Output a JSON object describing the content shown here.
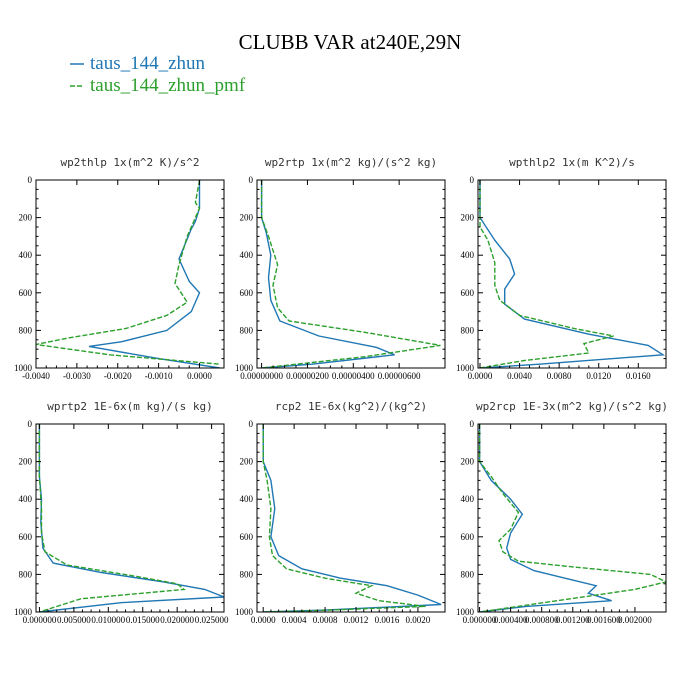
{
  "figure_title": "CLUBB VAR at240E,29N",
  "legend": [
    {
      "label": "taus_144_zhun",
      "color": "#1f77b4",
      "dash": "solid"
    },
    {
      "label": "taus_144_zhun_pmf",
      "color": "#2ca02c",
      "dash": "dashed"
    }
  ],
  "chart_data": [
    {
      "type": "line",
      "title": "wp2thlp  1x(m^2 K)/s^2",
      "ylabel": "",
      "xlabel": "",
      "ylim": [
        1000,
        0
      ],
      "xlim": [
        -0.004,
        0.0006
      ],
      "yticks": [
        0,
        200,
        400,
        600,
        800,
        1000
      ],
      "xticks": [
        -0.004,
        -0.003,
        -0.002,
        -0.001,
        0.0
      ],
      "xticklabels": [
        "-0.0040",
        "-0.0030",
        "-0.0020",
        "-0.0010",
        "0.0000"
      ],
      "series": [
        {
          "name": "taus_144_zhun",
          "points": [
            [
              0,
              0
            ],
            [
              0,
              150
            ],
            [
              -0.0001,
              220
            ],
            [
              -0.0002,
              260
            ],
            [
              -0.0005,
              420
            ],
            [
              -0.00025,
              540
            ],
            [
              0,
              600
            ],
            [
              -0.0002,
              700
            ],
            [
              -0.0008,
              800
            ],
            [
              -0.0019,
              860
            ],
            [
              -0.0027,
              885
            ],
            [
              -0.001,
              950
            ],
            [
              0.0005,
              1000
            ]
          ]
        },
        {
          "name": "taus_144_zhun_pmf",
          "points": [
            [
              0,
              0
            ],
            [
              -0.0001,
              120
            ],
            [
              0,
              150
            ],
            [
              -0.0003,
              300
            ],
            [
              -0.0005,
              450
            ],
            [
              -0.0006,
              550
            ],
            [
              -0.0003,
              650
            ],
            [
              -0.0008,
              720
            ],
            [
              -0.0018,
              790
            ],
            [
              -0.0032,
              840
            ],
            [
              -0.004,
              875
            ],
            [
              -0.0022,
              930
            ],
            [
              0.0005,
              980
            ]
          ]
        }
      ]
    },
    {
      "type": "line",
      "title": "wp2rtp  1x(m^2 kg)/(s^2 kg)",
      "ylabel": "",
      "xlabel": "",
      "ylim": [
        1000,
        0
      ],
      "xlim": [
        -2e-07,
        8e-06
      ],
      "yticks": [
        0,
        200,
        400,
        600,
        800,
        1000
      ],
      "xticks": [
        0.0,
        2e-06,
        4e-06,
        6e-06
      ],
      "xticklabels": [
        "0.00000000",
        "0.00000200",
        "0.00000400",
        "0.00000600"
      ],
      "series": [
        {
          "name": "taus_144_zhun",
          "points": [
            [
              0,
              0
            ],
            [
              0,
              200
            ],
            [
              2e-07,
              280
            ],
            [
              4e-07,
              400
            ],
            [
              3e-07,
              520
            ],
            [
              4e-07,
              640
            ],
            [
              8e-07,
              750
            ],
            [
              2.5e-06,
              830
            ],
            [
              5e-06,
              890
            ],
            [
              5.8e-06,
              930
            ],
            [
              2.2e-06,
              980
            ],
            [
              0,
              1000
            ]
          ]
        },
        {
          "name": "taus_144_zhun_pmf",
          "points": [
            [
              0,
              0
            ],
            [
              0,
              200
            ],
            [
              3e-07,
              300
            ],
            [
              7e-07,
              450
            ],
            [
              5e-07,
              560
            ],
            [
              7e-07,
              680
            ],
            [
              1.2e-06,
              750
            ],
            [
              4.5e-06,
              810
            ],
            [
              7.8e-06,
              880
            ],
            [
              4.5e-06,
              940
            ],
            [
              0,
              1000
            ]
          ]
        }
      ]
    },
    {
      "type": "line",
      "title": "wpthlp2  1x(m K^2)/s",
      "ylabel": "",
      "xlabel": "",
      "ylim": [
        1000,
        0
      ],
      "xlim": [
        -0.0002,
        0.0188
      ],
      "yticks": [
        0,
        200,
        400,
        600,
        800,
        1000
      ],
      "xticks": [
        0.0,
        0.004,
        0.008,
        0.012,
        0.016
      ],
      "xticklabels": [
        "0.0000",
        "0.0040",
        "0.0080",
        "0.0120",
        "0.0160"
      ],
      "series": [
        {
          "name": "taus_144_zhun",
          "points": [
            [
              0,
              0
            ],
            [
              0,
              200
            ],
            [
              0.0015,
              320
            ],
            [
              0.003,
              420
            ],
            [
              0.0035,
              500
            ],
            [
              0.0025,
              580
            ],
            [
              0.0025,
              660
            ],
            [
              0.0045,
              740
            ],
            [
              0.011,
              820
            ],
            [
              0.017,
              880
            ],
            [
              0.0185,
              930
            ],
            [
              0.006,
              980
            ],
            [
              0,
              1000
            ]
          ]
        },
        {
          "name": "taus_144_zhun_pmf",
          "points": [
            [
              0,
              0
            ],
            [
              0,
              250
            ],
            [
              0.0008,
              320
            ],
            [
              0.0015,
              440
            ],
            [
              0.0015,
              560
            ],
            [
              0.002,
              640
            ],
            [
              0.004,
              720
            ],
            [
              0.0095,
              790
            ],
            [
              0.0135,
              830
            ],
            [
              0.0105,
              870
            ],
            [
              0.011,
              920
            ],
            [
              0.0045,
              960
            ],
            [
              0,
              1000
            ]
          ]
        }
      ]
    },
    {
      "type": "line",
      "title": "wprtp2  1E-6x(m kg)/(s kg)",
      "ylabel": "",
      "xlabel": "",
      "ylim": [
        1000,
        0
      ],
      "xlim": [
        -0.0005,
        0.0268
      ],
      "yticks": [
        0,
        200,
        400,
        600,
        800,
        1000
      ],
      "xticks": [
        0.0,
        0.005,
        0.01,
        0.015,
        0.02,
        0.025
      ],
      "xticklabels": [
        "0.000000",
        "0.005000",
        "0.010000",
        "0.015000",
        "0.020000",
        "0.025000"
      ],
      "series": [
        {
          "name": "taus_144_zhun",
          "points": [
            [
              0,
              0
            ],
            [
              0,
              280
            ],
            [
              0.0003,
              400
            ],
            [
              0.0002,
              520
            ],
            [
              0.0005,
              660
            ],
            [
              0.002,
              740
            ],
            [
              0.009,
              790
            ],
            [
              0.018,
              840
            ],
            [
              0.024,
              880
            ],
            [
              0.0268,
              920
            ],
            [
              0.012,
              950
            ],
            [
              0,
              1000
            ]
          ]
        },
        {
          "name": "taus_144_zhun_pmf",
          "points": [
            [
              0,
              0
            ],
            [
              0,
              280
            ],
            [
              0.0003,
              450
            ],
            [
              0.0003,
              580
            ],
            [
              0.0008,
              680
            ],
            [
              0.004,
              750
            ],
            [
              0.014,
              810
            ],
            [
              0.02,
              850
            ],
            [
              0.021,
              880
            ],
            [
              0.006,
              930
            ],
            [
              0,
              1000
            ]
          ]
        }
      ]
    },
    {
      "type": "line",
      "title": "rcp2  1E-6x(kg^2)/(kg^2)",
      "ylabel": "",
      "xlabel": "",
      "ylim": [
        1000,
        0
      ],
      "xlim": [
        -8e-05,
        0.00235
      ],
      "yticks": [
        0,
        200,
        400,
        600,
        800,
        1000
      ],
      "xticks": [
        0.0,
        0.0004,
        0.0008,
        0.0012,
        0.0016,
        0.002
      ],
      "xticklabels": [
        "0.0000",
        "0.0004",
        "0.0008",
        "0.0012",
        "0.0016",
        "0.0020"
      ],
      "series": [
        {
          "name": "taus_144_zhun",
          "points": [
            [
              0,
              0
            ],
            [
              0,
              200
            ],
            [
              0.0001,
              300
            ],
            [
              0.00015,
              450
            ],
            [
              0.0001,
              600
            ],
            [
              0.0002,
              700
            ],
            [
              0.0005,
              770
            ],
            [
              0.001,
              820
            ],
            [
              0.0016,
              860
            ],
            [
              0.002,
              910
            ],
            [
              0.0023,
              960
            ],
            [
              0.0008,
              990
            ],
            [
              0,
              1000
            ]
          ]
        },
        {
          "name": "taus_144_zhun_pmf",
          "points": [
            [
              0,
              0
            ],
            [
              0,
              200
            ],
            [
              5e-05,
              300
            ],
            [
              0.0001,
              450
            ],
            [
              8e-05,
              600
            ],
            [
              0.00012,
              700
            ],
            [
              0.0003,
              770
            ],
            [
              0.0008,
              820
            ],
            [
              0.0014,
              860
            ],
            [
              0.0012,
              900
            ],
            [
              0.0015,
              940
            ],
            [
              0.0021,
              970
            ],
            [
              0.0005,
              995
            ],
            [
              0,
              1000
            ]
          ]
        }
      ]
    },
    {
      "type": "line",
      "title": "wp2rcp  1E-3x(m^2 kg)/(s^2 kg)",
      "ylabel": "",
      "xlabel": "",
      "ylim": [
        1000,
        0
      ],
      "xlim": [
        -2e-05,
        0.0024
      ],
      "yticks": [
        0,
        200,
        400,
        600,
        800,
        1000
      ],
      "xticks": [
        0.0,
        0.0004,
        0.0008,
        0.0012,
        0.0016,
        0.002
      ],
      "xticklabels": [
        "0.000000",
        "0.000400",
        "0.000800",
        "0.001200",
        "0.001600",
        "0.002000"
      ],
      "series": [
        {
          "name": "taus_144_zhun",
          "points": [
            [
              0,
              0
            ],
            [
              0,
              200
            ],
            [
              0.00015,
              300
            ],
            [
              0.0004,
              400
            ],
            [
              0.00055,
              480
            ],
            [
              0.0004,
              580
            ],
            [
              0.00035,
              660
            ],
            [
              0.0004,
              720
            ],
            [
              0.0007,
              780
            ],
            [
              0.0011,
              820
            ],
            [
              0.0015,
              860
            ],
            [
              0.0014,
              900
            ],
            [
              0.0017,
              940
            ],
            [
              0.0006,
              970
            ],
            [
              0,
              1000
            ]
          ]
        },
        {
          "name": "taus_144_zhun_pmf",
          "points": [
            [
              0,
              0
            ],
            [
              0,
              200
            ],
            [
              0.00015,
              280
            ],
            [
              0.0003,
              370
            ],
            [
              0.0005,
              470
            ],
            [
              0.0004,
              560
            ],
            [
              0.00025,
              620
            ],
            [
              0.0003,
              680
            ],
            [
              0.0005,
              730
            ],
            [
              0.0012,
              760
            ],
            [
              0.0022,
              800
            ],
            [
              0.0024,
              840
            ],
            [
              0.002,
              880
            ],
            [
              0.001,
              940
            ],
            [
              0,
              1000
            ]
          ]
        }
      ]
    }
  ]
}
